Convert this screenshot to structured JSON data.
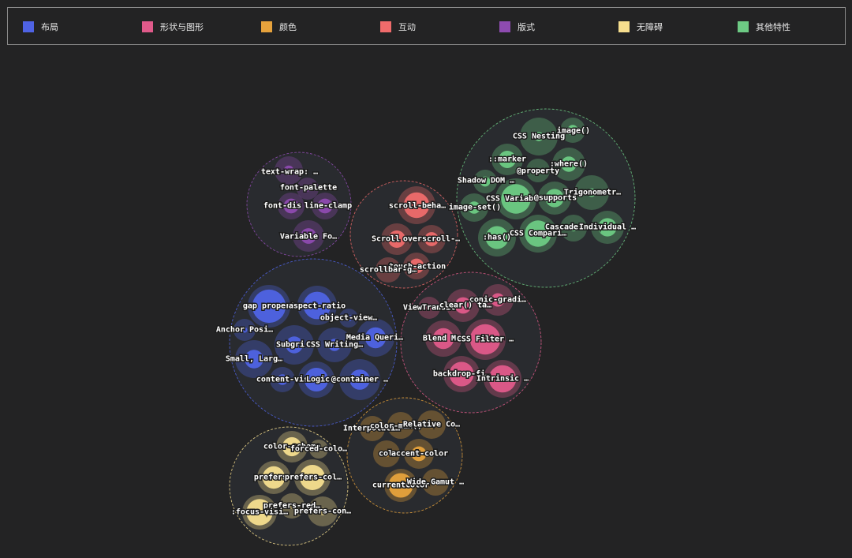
{
  "legend": [
    {
      "label": "布局",
      "color": "#4f63e4"
    },
    {
      "label": "形状与图形",
      "color": "#e05a8a"
    },
    {
      "label": "颜色",
      "color": "#e6a23c"
    },
    {
      "label": "互动",
      "color": "#ef6b6b"
    },
    {
      "label": "版式",
      "color": "#8e4bb0"
    },
    {
      "label": "无障碍",
      "color": "#f6de8e"
    },
    {
      "label": "其他特性",
      "color": "#6dca84"
    }
  ],
  "chart_data": {
    "type": "packed-bubble",
    "groups": [
      {
        "category": "版式",
        "color": "#8e4bb0",
        "items": [
          {
            "label": "text-wrap: …",
            "value": 0.2,
            "shown": true
          },
          {
            "label": "font-palette",
            "value": 0.1,
            "shown": true
          },
          {
            "label": "font-dis",
            "value": 0.5,
            "shown": true
          },
          {
            "label": "line-clamp",
            "value": 0.5,
            "shown": true
          },
          {
            "label": "Variable Fo…",
            "value": 0.4,
            "shown": true
          }
        ]
      },
      {
        "category": "互动",
        "color": "#ef6b6b",
        "items": [
          {
            "label": "scroll-beha…",
            "value": 0.75,
            "shown": true
          },
          {
            "label": "Scroll",
            "value": 0.5,
            "shown": true
          },
          {
            "label": "overscroll-…",
            "value": 0.4,
            "shown": true
          },
          {
            "label": "touch-action",
            "value": 0.5,
            "shown": true
          },
          {
            "label": "scrollbar-g…",
            "value": 0.1,
            "shown": true
          }
        ]
      },
      {
        "category": "其他特性",
        "color": "#6dca84",
        "items": [
          {
            "label": "CSS Nesting",
            "value": 0.1,
            "shown": true
          },
          {
            "label": "image()",
            "value": 0.3,
            "shown": true
          },
          {
            "label": "::marker",
            "value": 0.5,
            "shown": true
          },
          {
            "label": ":where()",
            "value": 0.35,
            "shown": true
          },
          {
            "label": "@property",
            "value": 0.1,
            "shown": true
          },
          {
            "label": "Shadow DOM …",
            "value": 0.3,
            "shown": true
          },
          {
            "label": "Trigonometr…",
            "value": 0.1,
            "shown": true
          },
          {
            "label": "CSS Variab",
            "value": 0.85,
            "shown": true
          },
          {
            "label": "@supports",
            "value": 0.5,
            "shown": true
          },
          {
            "label": "image-set()",
            "value": 0.3,
            "shown": true
          },
          {
            "label": ":has()",
            "value": 0.6,
            "shown": true
          },
          {
            "label": "CSS Compari…",
            "value": 0.8,
            "shown": true
          },
          {
            "label": "Cascade",
            "value": 0.1,
            "shown": true
          },
          {
            "label": "Individual …",
            "value": 0.5,
            "shown": true
          }
        ]
      },
      {
        "category": "布局",
        "color": "#4f63e4",
        "items": [
          {
            "label": "gap propert",
            "value": 1,
            "shown": true
          },
          {
            "label": "aspect-ratio",
            "value": 0.8,
            "shown": true
          },
          {
            "label": "object-view…",
            "value": 0.2,
            "shown": true
          },
          {
            "label": "Anchor Posi…",
            "value": 0.1,
            "shown": true
          },
          {
            "label": "Media Queri…",
            "value": 0.5,
            "shown": true
          },
          {
            "label": "Subgri",
            "value": 0.3,
            "shown": true
          },
          {
            "label": "CSS Writing…",
            "value": 0.2,
            "shown": true
          },
          {
            "label": "Small, Larg…",
            "value": 0.4,
            "shown": true
          },
          {
            "label": "content-vis",
            "value": 0.3,
            "shown": true
          },
          {
            "label": "Logic",
            "value": 0.7,
            "shown": true
          },
          {
            "label": "@container …",
            "value": 0.4,
            "shown": true
          }
        ]
      },
      {
        "category": "形状与图形",
        "color": "#e05a8a",
        "items": [
          {
            "label": "conic-gradi…",
            "value": 0.3,
            "shown": true
          },
          {
            "label": "ViewTransit",
            "value": 0.1,
            "shown": true
          },
          {
            "label": "clear() ta…",
            "value": 0.4,
            "shown": true
          },
          {
            "label": "Blend Mo",
            "value": 0.55,
            "shown": true
          },
          {
            "label": "CSS Filter …",
            "value": 0.9,
            "shown": true
          },
          {
            "label": "backdrop-fi…",
            "value": 0.75,
            "shown": true
          },
          {
            "label": "Intrinsic …",
            "value": 0.85,
            "shown": true
          }
        ]
      },
      {
        "category": "颜色",
        "color": "#e6a23c",
        "items": [
          {
            "label": "Interpolati…",
            "value": 0.1,
            "shown": true
          },
          {
            "label": "color-mix()",
            "value": 0.1,
            "shown": true
          },
          {
            "label": "Relative Co…",
            "value": 0.1,
            "shown": true
          },
          {
            "label": "colo",
            "value": 0.1,
            "shown": true
          },
          {
            "label": "accent-color",
            "value": 0.4,
            "shown": true
          },
          {
            "label": "currentColor",
            "value": 0.9,
            "shown": true
          },
          {
            "label": "Wide Gamut …",
            "value": 0.1,
            "shown": true
          }
        ]
      },
      {
        "category": "无障碍",
        "color": "#f6de8e",
        "items": [
          {
            "label": "color-scheme",
            "value": 0.6,
            "shown": true
          },
          {
            "label": "forced-colo…",
            "value": 0.1,
            "shown": true
          },
          {
            "label": "prefers-",
            "value": 0.75,
            "shown": true
          },
          {
            "label": "prefers-col…",
            "value": 0.8,
            "shown": true
          },
          {
            "label": "prefers-red…",
            "value": 0.1,
            "shown": true
          },
          {
            "label": ":focus-visi…",
            "value": 0.95,
            "shown": true
          },
          {
            "label": "prefers-con…",
            "value": 0.1,
            "shown": true
          }
        ]
      }
    ]
  }
}
